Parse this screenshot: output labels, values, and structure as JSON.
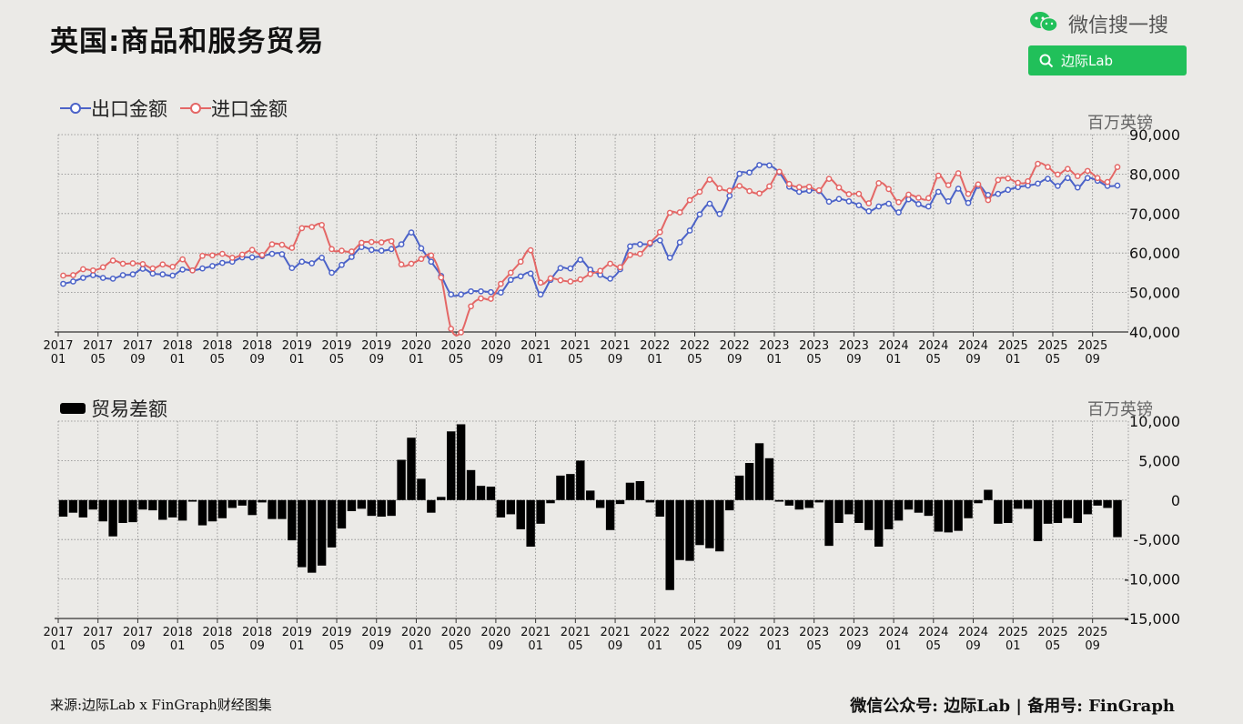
{
  "header": {
    "title": "英国:商品和服务贸易"
  },
  "brand": {
    "wechat_label": "微信搜一搜",
    "search_label": "边际Lab",
    "accent": "#21c05a"
  },
  "footer": {
    "source": "来源:边际Lab x FinGraph财经图集",
    "account": "微信公众号: 边际Lab  |  备用号: FinGraph"
  },
  "chart_data": [
    {
      "type": "line",
      "unit_label": "百万英镑",
      "yticks": [
        "90,000",
        "80,000",
        "70,000",
        "60,000",
        "50,000",
        "40,000"
      ],
      "ylim": [
        40000,
        90000
      ],
      "xtick_labels": [
        [
          "2017",
          "01"
        ],
        [
          "2017",
          "05"
        ],
        [
          "2017",
          "09"
        ],
        [
          "2018",
          "01"
        ],
        [
          "2018",
          "05"
        ],
        [
          "2018",
          "09"
        ],
        [
          "2019",
          "01"
        ],
        [
          "2019",
          "05"
        ],
        [
          "2019",
          "09"
        ],
        [
          "2020",
          "01"
        ],
        [
          "2020",
          "05"
        ],
        [
          "2020",
          "09"
        ],
        [
          "2021",
          "01"
        ],
        [
          "2021",
          "05"
        ],
        [
          "2021",
          "09"
        ],
        [
          "2022",
          "01"
        ],
        [
          "2022",
          "05"
        ],
        [
          "2022",
          "09"
        ],
        [
          "2023",
          "01"
        ],
        [
          "2023",
          "05"
        ],
        [
          "2023",
          "09"
        ],
        [
          "2024",
          "01"
        ],
        [
          "2024",
          "05"
        ],
        [
          "2024",
          "09"
        ],
        [
          "2025",
          "01"
        ],
        [
          "2025",
          "05"
        ],
        [
          "2025",
          "09"
        ]
      ],
      "start": "2017-01",
      "series": [
        {
          "name": "出口金额",
          "color": "#4c63c8",
          "values": [
            52200,
            52800,
            53700,
            54400,
            53700,
            53500,
            54400,
            54600,
            56000,
            54800,
            54600,
            54300,
            55800,
            55600,
            56100,
            56700,
            57500,
            57800,
            58900,
            58900,
            59200,
            59800,
            59700,
            56200,
            57800,
            57400,
            58800,
            55000,
            57000,
            59000,
            61500,
            60800,
            60600,
            61000,
            62200,
            65200,
            61200,
            57800,
            54200,
            49500,
            49500,
            50300,
            50300,
            50100,
            50000,
            53200,
            54100,
            54800,
            49500,
            53200,
            56200,
            56100,
            58300,
            55800,
            54500,
            53500,
            55900,
            61700,
            62200,
            62300,
            63200,
            58800,
            62700,
            65700,
            69800,
            72500,
            69900,
            74500,
            80100,
            80400,
            82300,
            82200,
            80400,
            76800,
            75500,
            75800,
            75700,
            73000,
            73700,
            73100,
            72100,
            70600,
            71800,
            72500,
            70300,
            73600,
            72400,
            71800,
            75500,
            73100,
            76300,
            72700,
            77000,
            74700,
            75000,
            76000,
            76700,
            77100,
            77600,
            78800,
            77000,
            79000,
            76600,
            79000,
            78300,
            77000,
            77100
          ]
        },
        {
          "name": "进口金额",
          "color": "#e46766",
          "values": [
            54300,
            54400,
            55900,
            55600,
            56400,
            58100,
            57300,
            57400,
            57200,
            56100,
            57100,
            56500,
            58400,
            55600,
            59300,
            59400,
            59800,
            58800,
            59600,
            60800,
            59500,
            62200,
            62100,
            61300,
            66300,
            66600,
            67100,
            61000,
            60600,
            60400,
            62600,
            62800,
            62700,
            63000,
            57100,
            57300,
            58500,
            59400,
            53800,
            40800,
            39900,
            46500,
            48500,
            48400,
            52200,
            55000,
            57800,
            60700,
            52500,
            53600,
            53100,
            52800,
            53300,
            54700,
            55500,
            57300,
            56400,
            59500,
            59800,
            62600,
            65300,
            70200,
            70300,
            73400,
            75500,
            78600,
            76400,
            75800,
            77000,
            75700,
            75100,
            76900,
            80600,
            77500,
            76700,
            76800,
            75900,
            78800,
            76600,
            74900,
            75000,
            72600,
            77700,
            76200,
            72900,
            74800,
            74000,
            73900,
            79600,
            77200,
            80200,
            75000,
            77400,
            73400,
            78500,
            78900,
            77800,
            78200,
            82600,
            81800,
            79900,
            81300,
            79500,
            80800,
            79000,
            78000,
            81800
          ]
        }
      ]
    },
    {
      "type": "bar",
      "unit_label": "百万英镑",
      "legend": "贸易差额",
      "color": "#000000",
      "yticks": [
        "10,000",
        "5,000",
        "0",
        "-5,000",
        "-10,000",
        "-15,000"
      ],
      "ylim": [
        -15000,
        10000
      ],
      "xtick_labels": [
        [
          "2017",
          "01"
        ],
        [
          "2017",
          "05"
        ],
        [
          "2017",
          "09"
        ],
        [
          "2018",
          "01"
        ],
        [
          "2018",
          "05"
        ],
        [
          "2018",
          "09"
        ],
        [
          "2019",
          "01"
        ],
        [
          "2019",
          "05"
        ],
        [
          "2019",
          "09"
        ],
        [
          "2020",
          "01"
        ],
        [
          "2020",
          "05"
        ],
        [
          "2020",
          "09"
        ],
        [
          "2021",
          "01"
        ],
        [
          "2021",
          "05"
        ],
        [
          "2021",
          "09"
        ],
        [
          "2022",
          "01"
        ],
        [
          "2022",
          "05"
        ],
        [
          "2022",
          "09"
        ],
        [
          "2023",
          "01"
        ],
        [
          "2023",
          "05"
        ],
        [
          "2023",
          "09"
        ],
        [
          "2024",
          "01"
        ],
        [
          "2024",
          "05"
        ],
        [
          "2024",
          "09"
        ],
        [
          "2025",
          "01"
        ],
        [
          "2025",
          "05"
        ],
        [
          "2025",
          "09"
        ]
      ],
      "values": [
        -2100,
        -1600,
        -2200,
        -1200,
        -2700,
        -4600,
        -2900,
        -2800,
        -1200,
        -1300,
        -2500,
        -2200,
        -2600,
        -200,
        -3200,
        -2700,
        -2300,
        -1000,
        -700,
        -1900,
        -300,
        -2400,
        -2400,
        -5100,
        -8500,
        -9200,
        -8300,
        -6000,
        -3600,
        -1400,
        -1100,
        -2000,
        -2100,
        -2000,
        5100,
        7900,
        2700,
        -1600,
        400,
        8700,
        9600,
        3800,
        1800,
        1700,
        -2200,
        -1800,
        -3700,
        -5900,
        -3000,
        -400,
        3100,
        3300,
        5000,
        1200,
        -1000,
        -3800,
        -500,
        2200,
        2400,
        -300,
        -2100,
        -11400,
        -7600,
        -7700,
        -5700,
        -6100,
        -6500,
        -1300,
        3100,
        4700,
        7200,
        5300,
        -200,
        -700,
        -1200,
        -1000,
        -300,
        -5800,
        -2900,
        -1800,
        -2900,
        -3800,
        -5900,
        -3700,
        -2600,
        -1200,
        -1600,
        -2000,
        -4000,
        -4100,
        -3900,
        -2300,
        -400,
        1300,
        -3000,
        -2900,
        -1100,
        -1100,
        -5200,
        -3000,
        -2900,
        -2300,
        -2900,
        -1800,
        -700,
        -1000,
        -4700
      ]
    }
  ]
}
